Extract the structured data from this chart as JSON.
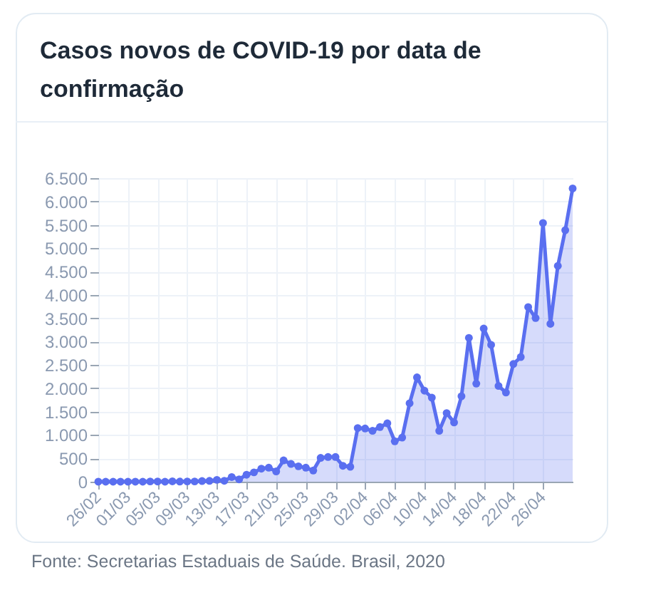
{
  "chart_data": {
    "type": "area",
    "title": "Casos novos de COVID-19 por data de confirmação",
    "annotations": [
      "Fonte: Secretarias Estaduais de Saúde. Brasil, 2020"
    ],
    "x": [
      "--02-26",
      "--02-27",
      "--02-28",
      "--02-29",
      "--03-01",
      "--03-02",
      "--03-03",
      "--03-04",
      "--03-05",
      "--03-06",
      "--03-07",
      "--03-08",
      "--03-09",
      "--03-10",
      "--03-11",
      "--03-12",
      "--03-13",
      "--03-14",
      "--03-15",
      "--03-16",
      "--03-17",
      "--03-18",
      "--03-19",
      "--03-20",
      "--03-21",
      "--03-22",
      "--03-23",
      "--03-24",
      "--03-25",
      "--03-26",
      "--03-27",
      "--03-28",
      "--03-29",
      "--03-30",
      "--03-31",
      "--04-01",
      "--04-02",
      "--04-03",
      "--04-04",
      "--04-05",
      "--04-06",
      "--04-07",
      "--04-08",
      "--04-09",
      "--04-10",
      "--04-11",
      "--04-12",
      "--04-13",
      "--04-14",
      "--04-15",
      "--04-16",
      "--04-17",
      "--04-18",
      "--04-19",
      "--04-20",
      "--04-21",
      "--04-22",
      "--04-23",
      "--04-24",
      "--04-25",
      "--04-26",
      "--04-27",
      "--04-28",
      "--04-29",
      "--04-30"
    ],
    "series": [
      {
        "color": "#5a6ff0",
        "values": [
          1,
          0,
          0,
          1,
          0,
          1,
          0,
          6,
          5,
          0,
          8,
          3,
          6,
          6,
          14,
          19,
          40,
          20,
          100,
          50,
          150,
          200,
          280,
          300,
          220,
          457,
          380,
          330,
          300,
          240,
          510,
          530,
          530,
          340,
          320,
          1150,
          1140,
          1090,
          1170,
          1250,
          865,
          945,
          1680,
          2235,
          1950,
          1800,
          1090,
          1470,
          1270,
          1830,
          3080,
          2100,
          3280,
          2930,
          2050,
          1910,
          2520,
          2670,
          3740,
          3505,
          5540,
          3380,
          4620,
          5385,
          6280
        ]
      }
    ],
    "xlim": [
      "--02-26",
      "--04-30"
    ],
    "xticks": [
      {
        "value": "--02-26",
        "label": "26/02"
      },
      {
        "value": "--03-01",
        "label": "01/03"
      },
      {
        "value": "--03-05",
        "label": "05/03"
      },
      {
        "value": "--03-09",
        "label": "09/03"
      },
      {
        "value": "--03-13",
        "label": "13/03"
      },
      {
        "value": "--03-17",
        "label": "17/03"
      },
      {
        "value": "--03-21",
        "label": "21/03"
      },
      {
        "value": "--03-25",
        "label": "25/03"
      },
      {
        "value": "--03-29",
        "label": "29/03"
      },
      {
        "value": "--04-02",
        "label": "02/04"
      },
      {
        "value": "--04-06",
        "label": "06/04"
      },
      {
        "value": "--04-10",
        "label": "10/04"
      },
      {
        "value": "--04-14",
        "label": "14/04"
      },
      {
        "value": "--04-18",
        "label": "18/04"
      },
      {
        "value": "--04-22",
        "label": "22/04"
      },
      {
        "value": "--04-26",
        "label": "26/04"
      }
    ],
    "ylim": [
      0,
      6500
    ],
    "yticks": [
      0,
      500,
      {
        "value": 1000,
        "label": "1.000"
      },
      {
        "value": 1500,
        "label": "1.500"
      },
      {
        "value": 2000,
        "label": "2.000"
      },
      {
        "value": 2500,
        "label": "2.500"
      },
      {
        "value": 3000,
        "label": "3.000"
      },
      {
        "value": 3500,
        "label": "3.500"
      },
      {
        "value": 4000,
        "label": "4.000"
      },
      {
        "value": 4500,
        "label": "4.500"
      },
      {
        "value": 5000,
        "label": "5.000"
      },
      {
        "value": 5500,
        "label": "5.500"
      },
      {
        "value": 6000,
        "label": "6.000"
      },
      {
        "value": 6500,
        "label": "6.500"
      }
    ],
    "grid": true,
    "marker": "circle",
    "line_style": "solid"
  }
}
